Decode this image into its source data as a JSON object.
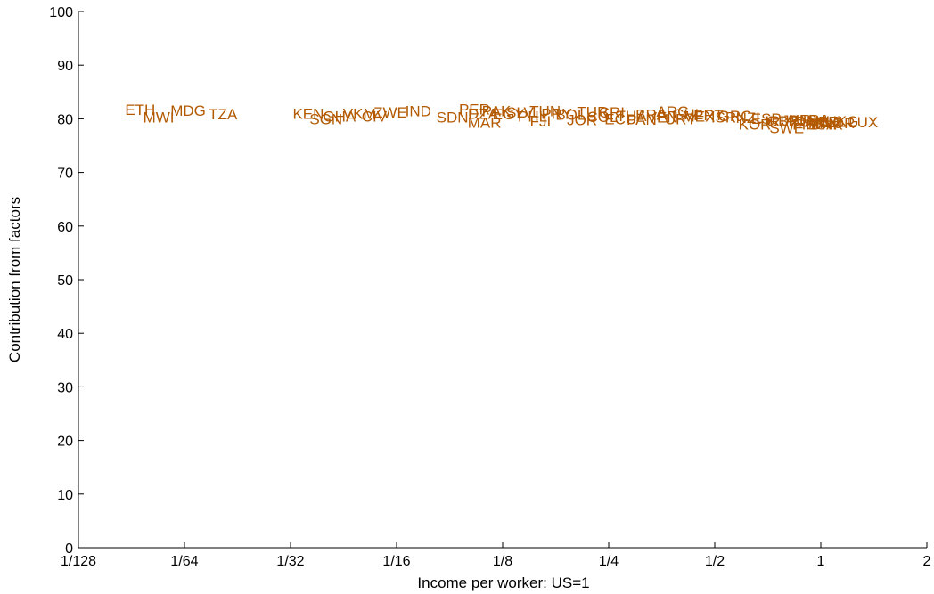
{
  "chart_data": {
    "type": "scatter",
    "title": "",
    "xlabel": "Income per worker: US=1",
    "ylabel": "Contribution from factors",
    "x_scale": "log2",
    "xlim": [
      0.0078125,
      2
    ],
    "ylim": [
      0,
      100
    ],
    "x_ticks": [
      {
        "v": 0.0078125,
        "label": "1/128"
      },
      {
        "v": 0.015625,
        "label": "1/64"
      },
      {
        "v": 0.03125,
        "label": "1/32"
      },
      {
        "v": 0.0625,
        "label": "1/16"
      },
      {
        "v": 0.125,
        "label": "1/8"
      },
      {
        "v": 0.25,
        "label": "1/4"
      },
      {
        "v": 0.5,
        "label": "1/2"
      },
      {
        "v": 1,
        "label": "1"
      },
      {
        "v": 2,
        "label": "2"
      }
    ],
    "y_ticks": [
      0,
      10,
      20,
      30,
      40,
      50,
      60,
      70,
      80,
      90,
      100
    ],
    "grid": false,
    "color": "#b35900",
    "points": [
      {
        "label": "ETH",
        "x": 0.0117,
        "y": 81.7
      },
      {
        "label": "MWI",
        "x": 0.0132,
        "y": 80.3
      },
      {
        "label": "MDG",
        "x": 0.016,
        "y": 81.6
      },
      {
        "label": "TZA",
        "x": 0.0201,
        "y": 80.9
      },
      {
        "label": "KEN",
        "x": 0.0351,
        "y": 81.0
      },
      {
        "label": "SGN",
        "x": 0.0394,
        "y": 80.0
      },
      {
        "label": "GHA",
        "x": 0.043,
        "y": 80.5
      },
      {
        "label": "VKM",
        "x": 0.049,
        "y": 81.0
      },
      {
        "label": "CIV",
        "x": 0.054,
        "y": 80.5
      },
      {
        "label": "ZWE",
        "x": 0.06,
        "y": 81.2
      },
      {
        "label": "IND",
        "x": 0.072,
        "y": 81.5
      },
      {
        "label": "SDN",
        "x": 0.09,
        "y": 80.3
      },
      {
        "label": "PER",
        "x": 0.104,
        "y": 81.8
      },
      {
        "label": "DZA",
        "x": 0.11,
        "y": 81.0
      },
      {
        "label": "MAR",
        "x": 0.111,
        "y": 79.3
      },
      {
        "label": "PAK",
        "x": 0.12,
        "y": 81.5
      },
      {
        "label": "EGY",
        "x": 0.13,
        "y": 80.9
      },
      {
        "label": "SLV",
        "x": 0.14,
        "y": 81.2
      },
      {
        "label": "PHL",
        "x": 0.152,
        "y": 80.5
      },
      {
        "label": "TUN",
        "x": 0.165,
        "y": 81.5
      },
      {
        "label": "PRY",
        "x": 0.178,
        "y": 81.0
      },
      {
        "label": "FJI",
        "x": 0.16,
        "y": 79.6
      },
      {
        "label": "BOL",
        "x": 0.195,
        "y": 80.8
      },
      {
        "label": "JOR",
        "x": 0.21,
        "y": 79.8
      },
      {
        "label": "TUR",
        "x": 0.225,
        "y": 81.3
      },
      {
        "label": "COL",
        "x": 0.24,
        "y": 80.4
      },
      {
        "label": "CRI",
        "x": 0.255,
        "y": 81.2
      },
      {
        "label": "ECU",
        "x": 0.27,
        "y": 80.0
      },
      {
        "label": "THA",
        "x": 0.29,
        "y": 80.6
      },
      {
        "label": "PAN",
        "x": 0.31,
        "y": 79.9
      },
      {
        "label": "BRA",
        "x": 0.33,
        "y": 80.8
      },
      {
        "label": "VEN",
        "x": 0.355,
        "y": 80.3
      },
      {
        "label": "ARG",
        "x": 0.38,
        "y": 81.4
      },
      {
        "label": "URY",
        "x": 0.4,
        "y": 80.0
      },
      {
        "label": "CHL",
        "x": 0.42,
        "y": 80.9
      },
      {
        "label": "MEX",
        "x": 0.45,
        "y": 80.5
      },
      {
        "label": "PRT",
        "x": 0.48,
        "y": 80.7
      },
      {
        "label": "ISR",
        "x": 0.53,
        "y": 80.3
      },
      {
        "label": "GRC",
        "x": 0.57,
        "y": 80.6
      },
      {
        "label": "NZL",
        "x": 0.63,
        "y": 80.2
      },
      {
        "label": "KOR",
        "x": 0.65,
        "y": 79.0
      },
      {
        "label": "ESP",
        "x": 0.7,
        "y": 80.1
      },
      {
        "label": "IRL",
        "x": 0.75,
        "y": 79.6
      },
      {
        "label": "GBR",
        "x": 0.78,
        "y": 79.6
      },
      {
        "label": "SWE",
        "x": 0.8,
        "y": 78.3
      },
      {
        "label": "JPN",
        "x": 0.85,
        "y": 79.7
      },
      {
        "label": "AUS",
        "x": 0.88,
        "y": 79.8
      },
      {
        "label": "FIN",
        "x": 0.9,
        "y": 79.0
      },
      {
        "label": "CAN",
        "x": 0.93,
        "y": 79.5
      },
      {
        "label": "FRA",
        "x": 0.96,
        "y": 79.8
      },
      {
        "label": "ITA",
        "x": 0.99,
        "y": 79.2
      },
      {
        "label": "NLD",
        "x": 1.02,
        "y": 79.4
      },
      {
        "label": "USA",
        "x": 1.0,
        "y": 79.0
      },
      {
        "label": "BEL",
        "x": 1.08,
        "y": 79.5
      },
      {
        "label": "DNK",
        "x": 1.04,
        "y": 79.0
      },
      {
        "label": "NOR",
        "x": 1.12,
        "y": 79.2
      },
      {
        "label": "HKG",
        "x": 1.15,
        "y": 79.6
      },
      {
        "label": "LUX",
        "x": 1.32,
        "y": 79.4
      }
    ]
  }
}
